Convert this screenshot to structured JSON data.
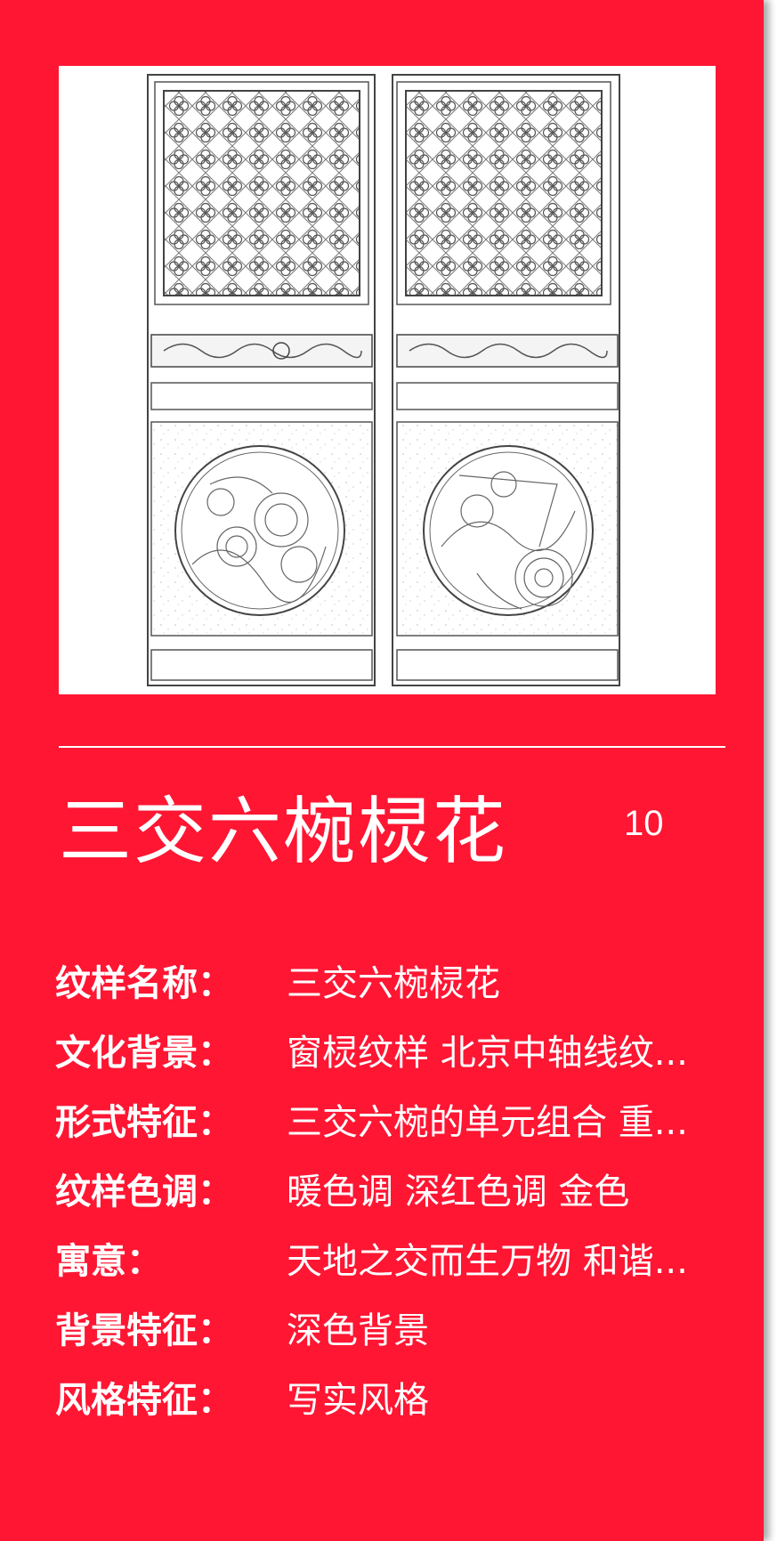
{
  "card": {
    "title": "三交六椀棂花",
    "number": "10",
    "image_alt": "window-lattice-sketch"
  },
  "details": [
    {
      "label": "纹样名称：",
      "value": "三交六椀棂花"
    },
    {
      "label": "文化背景：",
      "value": "窗棂纹样 北京中轴线纹..."
    },
    {
      "label": "形式特征：",
      "value": "三交六椀的单元组合 重..."
    },
    {
      "label": "纹样色调：",
      "value": "暖色调  深红色调  金色"
    },
    {
      "label": "寓意：",
      "value": "天地之交而生万物 和谐..."
    },
    {
      "label": "背景特征：",
      "value": "深色背景"
    },
    {
      "label": "风格特征：",
      "value": "写实风格"
    }
  ],
  "colors": {
    "background": "#fe1633",
    "text": "#ffffff"
  }
}
